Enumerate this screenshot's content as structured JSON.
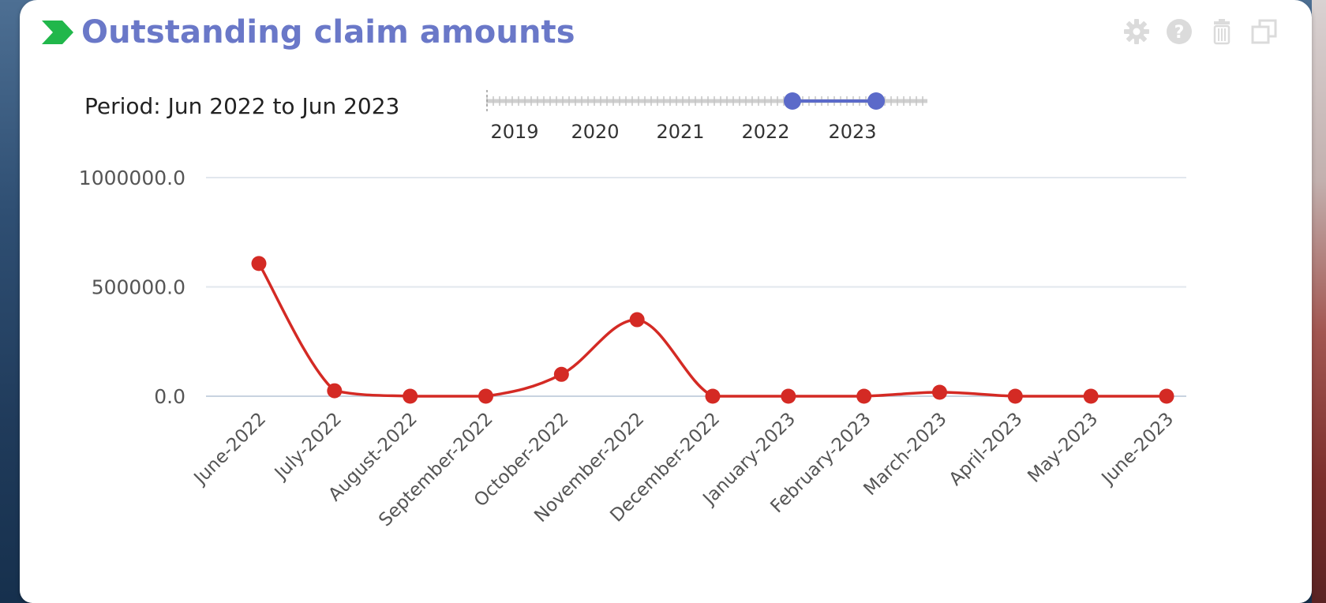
{
  "header": {
    "title": "Outstanding claim amounts",
    "title_color": "#6a78c8",
    "arrow_color": "#21b74b",
    "toolbar_icons": [
      "gear-icon",
      "help-icon",
      "trash-icon",
      "maximize-icon"
    ]
  },
  "period": {
    "label": "Period: Jun 2022 to Jun 2023",
    "years": [
      "2019",
      "2020",
      "2021",
      "2022",
      "2023"
    ],
    "range_selected": [
      "2022",
      "2023"
    ],
    "handle_color": "#5b6ac9"
  },
  "chart_data": {
    "type": "line",
    "categories": [
      "June-2022",
      "July-2022",
      "August-2022",
      "September-2022",
      "October-2022",
      "November-2022",
      "December-2022",
      "January-2023",
      "February-2023",
      "March-2023",
      "April-2023",
      "May-2023",
      "June-2023"
    ],
    "series": [
      {
        "values": [
          607000,
          25000,
          0,
          0,
          100000,
          350000,
          0,
          0,
          0,
          18000,
          0,
          0,
          0
        ],
        "color": "#d42a24"
      }
    ],
    "y_ticks": [
      "1000000.0",
      "500000.0",
      "0.0"
    ],
    "ylim": [
      0,
      1000000
    ],
    "grid": true,
    "smooth": true
  }
}
